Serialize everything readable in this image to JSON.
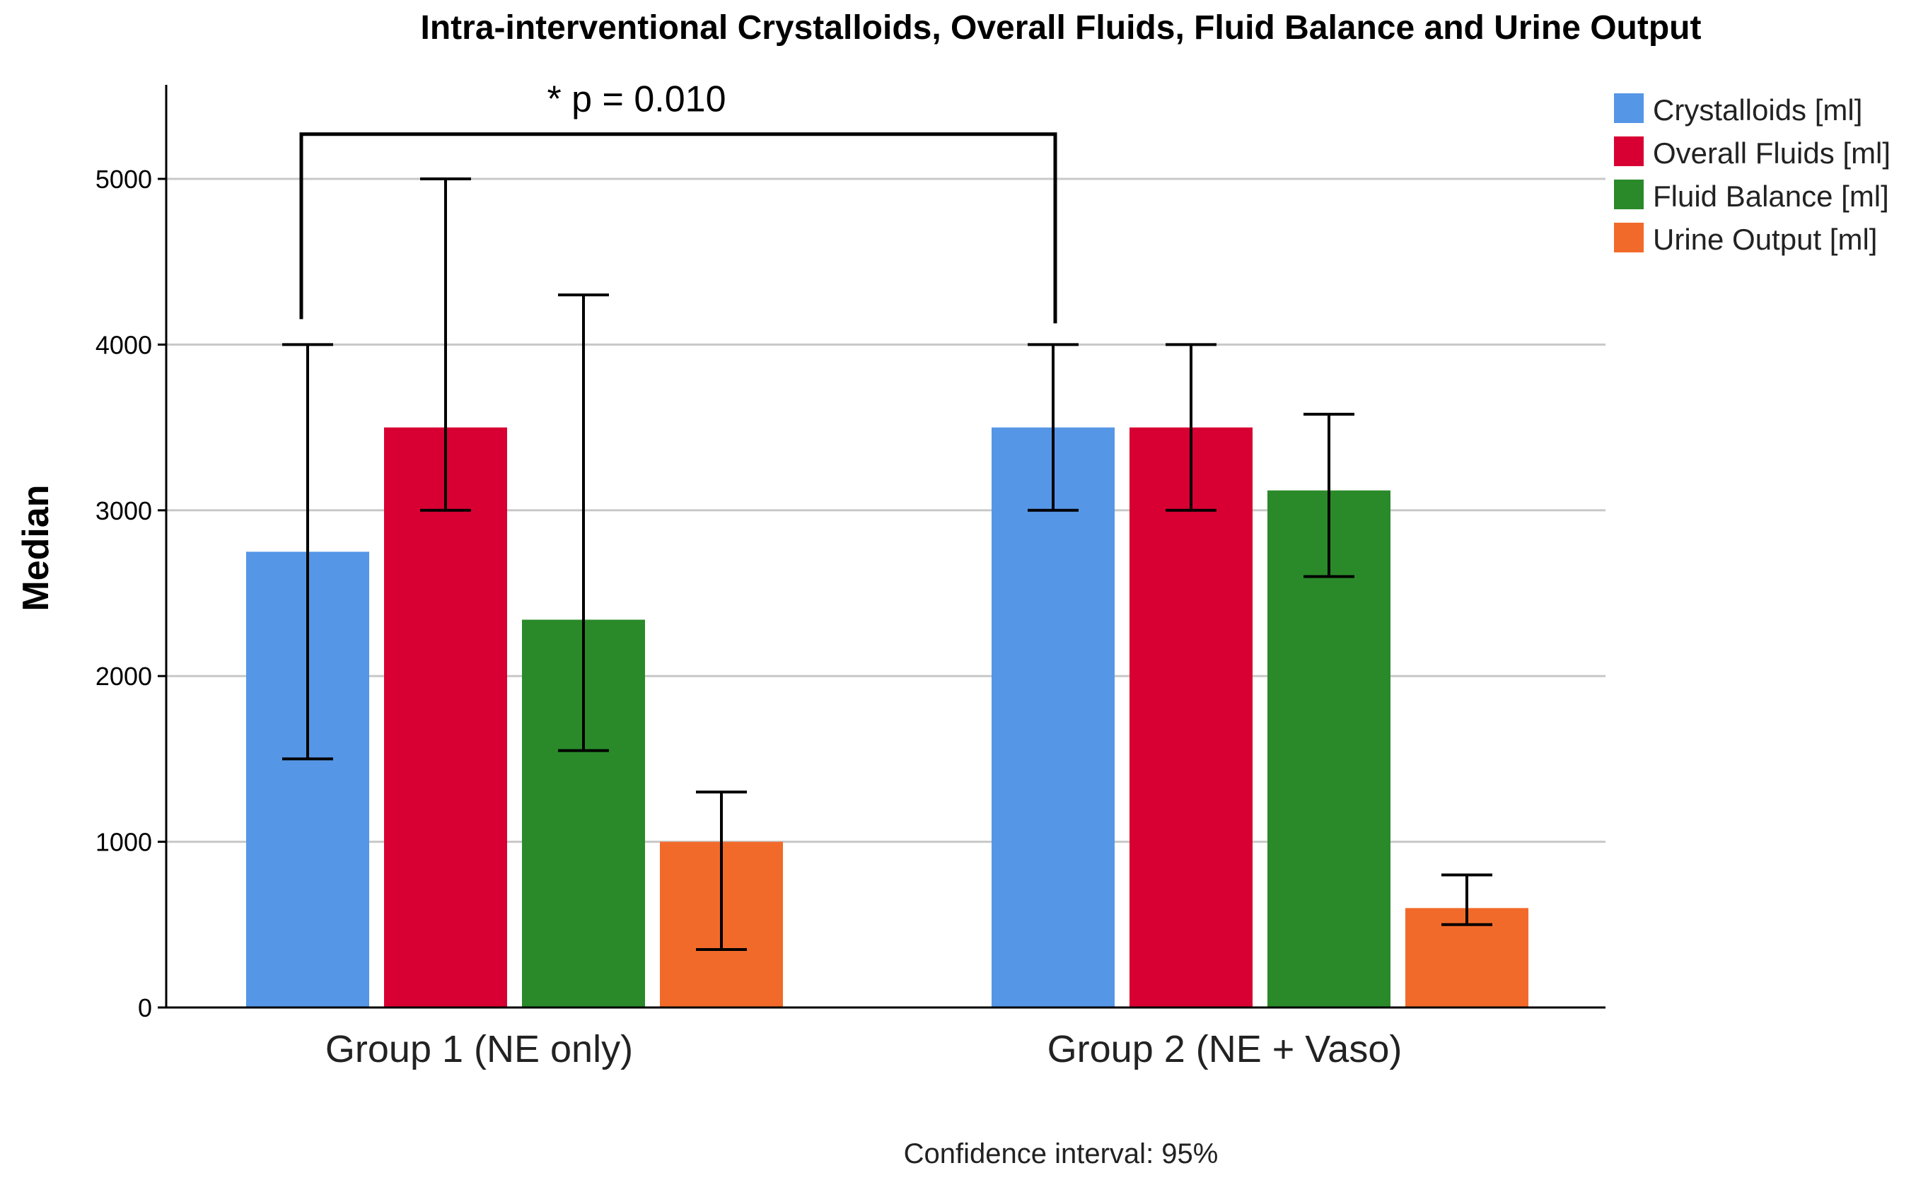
{
  "chart_data": {
    "type": "bar",
    "title": "Intra-interventional Crystalloids, Overall Fluids, Fluid Balance and Urine Output",
    "ylabel": "Median",
    "xlabel": "",
    "categories": [
      "Group 1 (NE only)",
      "Group 2 (NE + Vaso)"
    ],
    "ylim": [
      0,
      5500
    ],
    "yticks": [
      0,
      1000,
      2000,
      3000,
      4000,
      5000
    ],
    "grid": true,
    "legend_position": "top-right",
    "series": [
      {
        "name": "Crystalloids [ml]",
        "color": "#5596e6",
        "values": [
          2750,
          3500
        ],
        "ci_low": [
          1500,
          3000
        ],
        "ci_high": [
          4000,
          4000
        ]
      },
      {
        "name": "Overall Fluids [ml]",
        "color": "#d80032",
        "values": [
          3500,
          3500
        ],
        "ci_low": [
          3000,
          3000
        ],
        "ci_high": [
          5000,
          4000
        ]
      },
      {
        "name": "Fluid Balance [ml]",
        "color": "#2a8a2a",
        "values": [
          2340,
          3120
        ],
        "ci_low": [
          1550,
          2600
        ],
        "ci_high": [
          4300,
          3580
        ]
      },
      {
        "name": "Urine Output [ml]",
        "color": "#f26a2a",
        "values": [
          1000,
          600
        ],
        "ci_low": [
          350,
          500
        ],
        "ci_high": [
          1300,
          800
        ]
      }
    ],
    "annotations": {
      "significance": {
        "label": "* p = 0.010",
        "between": [
          "Group 1 (NE only)",
          "Group 2 (NE + Vaso)"
        ],
        "series": "Crystalloids [ml]",
        "level": 5270
      },
      "note": "Confidence interval: 95%"
    }
  }
}
